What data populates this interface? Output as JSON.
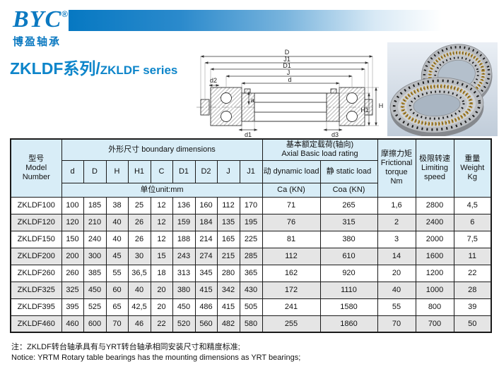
{
  "brand": {
    "name": "BYC",
    "registered": "®",
    "subtitle": "博盈轴承"
  },
  "title": {
    "zh": "ZKLDF系列/",
    "en": "ZKLDF series"
  },
  "diagram": {
    "labels": {
      "D": "D",
      "J1": "J1",
      "D1": "D1",
      "J": "J",
      "d": "d",
      "d2": "d2",
      "a": "a",
      "d1": "d1",
      "d3": "d3",
      "H": "H",
      "H1": "H1"
    }
  },
  "table": {
    "headers": {
      "model_zh": "型号",
      "model_en": "Model Number",
      "boundary": "外形尺寸 boundary dimensions",
      "axial_zh": "基本额定载荷(轴向)",
      "axial_en": "Axial Basic load rating",
      "dim_cols": [
        "d",
        "D",
        "H",
        "H1",
        "C",
        "D1",
        "D2",
        "J",
        "J1"
      ],
      "dynamic": "动 dynamic load",
      "static": "静 static load",
      "unit_row": "单位unit:mm",
      "ca": "Ca  (KN)",
      "coa": "Coa (KN)",
      "friction_zh": "摩擦力矩",
      "friction_en": "Frictional torque",
      "friction_unit": "Nm",
      "limit_zh": "极限转速",
      "limit_en": "Limiting speed",
      "weight_zh": "重量",
      "weight_en": "Weight",
      "weight_unit": "Kg"
    },
    "rows": [
      [
        "ZKLDF100",
        "100",
        "185",
        "38",
        "25",
        "12",
        "136",
        "160",
        "112",
        "170",
        "71",
        "265",
        "1,6",
        "2800",
        "4,5"
      ],
      [
        "ZKLDF120",
        "120",
        "210",
        "40",
        "26",
        "12",
        "159",
        "184",
        "135",
        "195",
        "76",
        "315",
        "2",
        "2400",
        "6"
      ],
      [
        "ZKLDF150",
        "150",
        "240",
        "40",
        "26",
        "12",
        "188",
        "214",
        "165",
        "225",
        "81",
        "380",
        "3",
        "2000",
        "7,5"
      ],
      [
        "ZKLDF200",
        "200",
        "300",
        "45",
        "30",
        "15",
        "243",
        "274",
        "215",
        "285",
        "112",
        "610",
        "14",
        "1600",
        "11"
      ],
      [
        "ZKLDF260",
        "260",
        "385",
        "55",
        "36,5",
        "18",
        "313",
        "345",
        "280",
        "365",
        "162",
        "920",
        "20",
        "1200",
        "22"
      ],
      [
        "ZKLDF325",
        "325",
        "450",
        "60",
        "40",
        "20",
        "380",
        "415",
        "342",
        "430",
        "172",
        "1110",
        "40",
        "1000",
        "28"
      ],
      [
        "ZKLDF395",
        "395",
        "525",
        "65",
        "42,5",
        "20",
        "450",
        "486",
        "415",
        "505",
        "241",
        "1580",
        "55",
        "800",
        "39"
      ],
      [
        "ZKLDF460",
        "460",
        "600",
        "70",
        "46",
        "22",
        "520",
        "560",
        "482",
        "580",
        "255",
        "1860",
        "70",
        "700",
        "50"
      ]
    ]
  },
  "notes": {
    "zh": "注：ZKLDF转台轴承具有与YRT转台轴承相同安装尺寸和精度标准;",
    "en": "Notice: YRTM Rotary table bearings has the mounting dimensions as YRT bearings;"
  },
  "colors": {
    "accent_blue": "#0d85ca",
    "logo_blue": "#0b79c1",
    "header_bg": "#d8edf7",
    "alt_row": "#e5e5e5",
    "border": "#1a1a1a",
    "brass": "#b08a33",
    "photo_bg": "#c6d1dd"
  }
}
